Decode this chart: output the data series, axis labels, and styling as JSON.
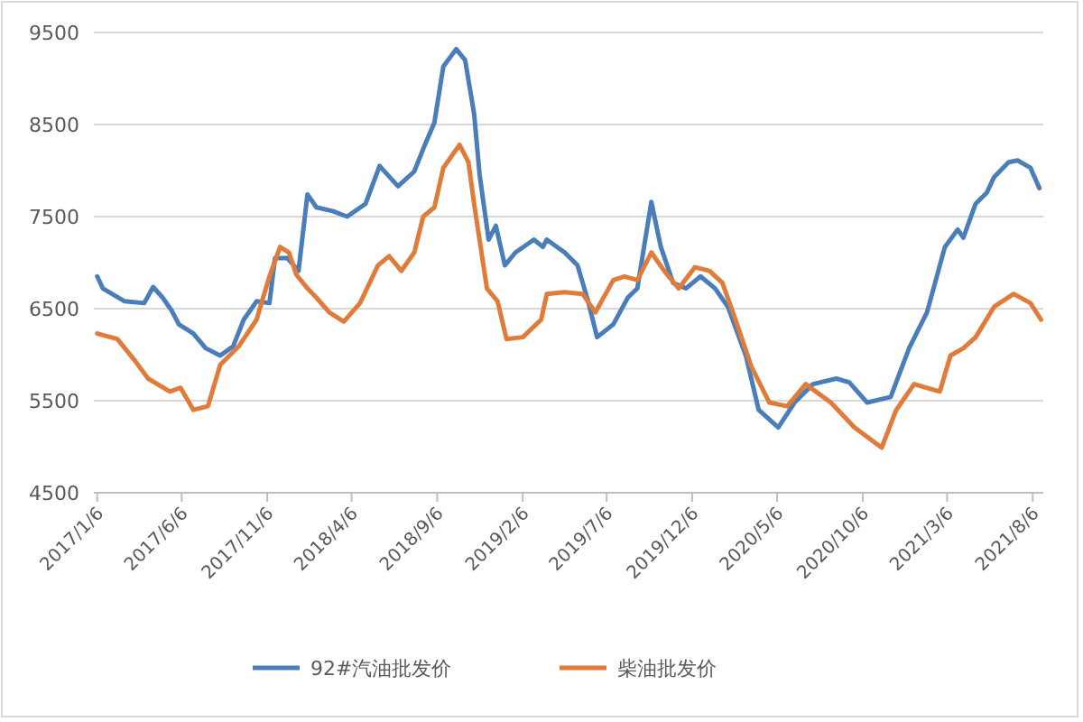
{
  "chart_data": {
    "type": "line",
    "series": [
      {
        "name": "92#汽油批发价",
        "color": "#4a7ebb",
        "x": [
          "2017-01-06",
          "2017-01-16",
          "2017-02-24",
          "2017-03-31",
          "2017-04-16",
          "2017-05-03",
          "2017-05-19",
          "2017-06-01",
          "2017-06-27",
          "2017-07-19",
          "2017-08-14",
          "2017-09-06",
          "2017-09-25",
          "2017-10-18",
          "2017-11-10",
          "2017-11-20",
          "2017-12-12",
          "2018-01-01",
          "2018-01-17",
          "2018-02-02",
          "2018-03-03",
          "2018-03-29",
          "2018-05-01",
          "2018-05-26",
          "2018-06-28",
          "2018-07-27",
          "2018-08-15",
          "2018-09-01",
          "2018-09-17",
          "2018-10-10",
          "2018-10-26",
          "2018-11-11",
          "2018-11-21",
          "2018-12-07",
          "2018-12-20",
          "2019-01-05",
          "2019-01-24",
          "2019-02-26",
          "2019-03-14",
          "2019-03-21",
          "2019-04-22",
          "2019-05-15",
          "2019-06-03",
          "2019-06-19",
          "2019-07-18",
          "2019-08-13",
          "2019-08-30",
          "2019-09-24",
          "2019-10-11",
          "2019-11-02",
          "2019-11-25",
          "2019-12-21",
          "2020-01-16",
          "2020-02-08",
          "2020-03-11",
          "2020-04-03",
          "2020-05-08",
          "2020-06-06",
          "2020-07-09",
          "2020-08-20",
          "2020-09-12",
          "2020-10-14",
          "2020-11-25",
          "2020-12-28",
          "2021-01-29",
          "2021-03-02",
          "2021-03-25",
          "2021-04-04",
          "2021-04-26",
          "2021-05-16",
          "2021-05-29",
          "2021-06-24",
          "2021-07-10",
          "2021-08-02",
          "2021-08-18"
        ],
        "values": [
          6850,
          6720,
          6580,
          6560,
          6735,
          6620,
          6480,
          6330,
          6230,
          6070,
          5990,
          6090,
          6380,
          6580,
          6560,
          7050,
          7050,
          6910,
          7740,
          7600,
          7560,
          7500,
          7640,
          8050,
          7830,
          7990,
          8280,
          8520,
          9130,
          9320,
          9200,
          8620,
          7950,
          7250,
          7400,
          6970,
          7110,
          7250,
          7170,
          7250,
          7110,
          6970,
          6580,
          6190,
          6330,
          6620,
          6720,
          7660,
          7170,
          6780,
          6720,
          6850,
          6720,
          6520,
          5990,
          5400,
          5210,
          5480,
          5680,
          5740,
          5700,
          5480,
          5540,
          6070,
          6460,
          7170,
          7360,
          7270,
          7640,
          7760,
          7930,
          8090,
          8110,
          8030,
          7810
        ]
      },
      {
        "name": "柴油批发价",
        "color": "#e07b39",
        "x": [
          "2017-01-06",
          "2017-02-11",
          "2017-03-15",
          "2017-04-07",
          "2017-05-16",
          "2017-06-04",
          "2017-06-27",
          "2017-07-23",
          "2017-08-14",
          "2017-09-16",
          "2017-10-18",
          "2017-11-10",
          "2017-11-29",
          "2017-12-15",
          "2017-12-28",
          "2018-01-17",
          "2018-02-02",
          "2018-02-25",
          "2018-03-23",
          "2018-04-21",
          "2018-05-23",
          "2018-06-12",
          "2018-07-04",
          "2018-07-27",
          "2018-08-12",
          "2018-09-01",
          "2018-09-17",
          "2018-10-16",
          "2018-11-01",
          "2018-11-11",
          "2018-12-04",
          "2018-12-23",
          "2019-01-08",
          "2019-02-06",
          "2019-03-11",
          "2019-03-21",
          "2019-04-22",
          "2019-05-24",
          "2019-06-16",
          "2019-07-18",
          "2019-08-07",
          "2019-08-30",
          "2019-09-24",
          "2019-10-17",
          "2019-11-12",
          "2019-12-11",
          "2020-01-06",
          "2020-01-29",
          "2020-02-17",
          "2020-03-21",
          "2020-04-22",
          "2020-05-24",
          "2020-06-26",
          "2020-08-10",
          "2020-09-21",
          "2020-11-09",
          "2020-12-05",
          "2021-01-06",
          "2021-02-21",
          "2021-03-12",
          "2021-04-04",
          "2021-04-26",
          "2021-05-29",
          "2021-07-03",
          "2021-08-02",
          "2021-08-21"
        ],
        "values": [
          6230,
          6170,
          5930,
          5740,
          5600,
          5640,
          5400,
          5440,
          5890,
          6090,
          6380,
          6850,
          7170,
          7110,
          6870,
          6720,
          6620,
          6460,
          6360,
          6560,
          6970,
          7070,
          6910,
          7110,
          7500,
          7600,
          8030,
          8280,
          8090,
          7640,
          6720,
          6580,
          6170,
          6190,
          6380,
          6660,
          6680,
          6660,
          6460,
          6810,
          6850,
          6810,
          7110,
          6910,
          6720,
          6950,
          6910,
          6780,
          6460,
          5870,
          5480,
          5440,
          5680,
          5480,
          5210,
          4990,
          5400,
          5680,
          5600,
          5990,
          6070,
          6190,
          6520,
          6660,
          6560,
          6380
        ]
      }
    ],
    "xlim": [
      "2016-12-31",
      "2021-08-25"
    ],
    "xticks": [
      {
        "value": "2017-01-06",
        "label": "2017/1/6"
      },
      {
        "value": "2017-06-06",
        "label": "2017/6/6"
      },
      {
        "value": "2017-11-06",
        "label": "2017/11/6"
      },
      {
        "value": "2018-04-06",
        "label": "2018/4/6"
      },
      {
        "value": "2018-09-06",
        "label": "2018/9/6"
      },
      {
        "value": "2019-02-06",
        "label": "2019/2/6"
      },
      {
        "value": "2019-07-06",
        "label": "2019/7/6"
      },
      {
        "value": "2019-12-06",
        "label": "2019/12/6"
      },
      {
        "value": "2020-05-06",
        "label": "2020/5/6"
      },
      {
        "value": "2020-10-06",
        "label": "2020/10/6"
      },
      {
        "value": "2021-03-06",
        "label": "2021/3/6"
      },
      {
        "value": "2021-08-06",
        "label": "2021/8/6"
      }
    ],
    "ylim": [
      4500,
      9500
    ],
    "yticks": [
      4500,
      5500,
      6500,
      7500,
      8500,
      9500
    ],
    "grid": "y",
    "legend": "bottom",
    "marker": "none",
    "line_style": "solid"
  }
}
